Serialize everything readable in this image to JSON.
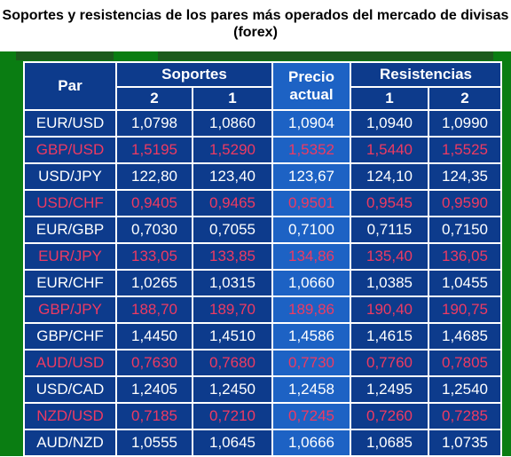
{
  "title": {
    "line1": "Soportes y resistencias de los pares más operados del mercado de divisas",
    "line2": "(forex)"
  },
  "header": {
    "pair_label": "Par",
    "supports_label": "Soportes",
    "current_line1": "Precio",
    "current_line2": "actual",
    "resistances_label": "Resistencias",
    "support_2": "2",
    "support_1": "1",
    "resistance_1": "1",
    "resistance_2": "2"
  },
  "colors": {
    "table_bg": "#0d3b8c",
    "current_col_bg": "#1d62c4",
    "text_white": "#ffffff",
    "text_pink": "#ee3a62",
    "frame_green": "#0a7d12"
  },
  "rows": [
    {
      "pair": "EUR/USD",
      "s2": "1,0798",
      "s1": "1,0860",
      "current": "1,0904",
      "r1": "1,0940",
      "r2": "1,0990"
    },
    {
      "pair": "GBP/USD",
      "s2": "1,5195",
      "s1": "1,5290",
      "current": "1,5352",
      "r1": "1,5440",
      "r2": "1,5525"
    },
    {
      "pair": "USD/JPY",
      "s2": "122,80",
      "s1": "123,40",
      "current": "123,67",
      "r1": "124,10",
      "r2": "124,35"
    },
    {
      "pair": "USD/CHF",
      "s2": "0,9405",
      "s1": "0,9465",
      "current": "0,9501",
      "r1": "0,9545",
      "r2": "0,9590"
    },
    {
      "pair": "EUR/GBP",
      "s2": "0,7030",
      "s1": "0,7055",
      "current": "0,7100",
      "r1": "0,7115",
      "r2": "0,7150"
    },
    {
      "pair": "EUR/JPY",
      "s2": "133,05",
      "s1": "133,85",
      "current": "134,86",
      "r1": "135,40",
      "r2": "136,05"
    },
    {
      "pair": "EUR/CHF",
      "s2": "1,0265",
      "s1": "1,0315",
      "current": "1,0660",
      "r1": "1,0385",
      "r2": "1,0455"
    },
    {
      "pair": "GBP/JPY",
      "s2": "188,70",
      "s1": "189,70",
      "current": "189,86",
      "r1": "190,40",
      "r2": "190,75"
    },
    {
      "pair": "GBP/CHF",
      "s2": "1,4450",
      "s1": "1,4510",
      "current": "1,4586",
      "r1": "1,4615",
      "r2": "1,4685"
    },
    {
      "pair": "AUD/USD",
      "s2": "0,7630",
      "s1": "0,7680",
      "current": "0,7730",
      "r1": "0,7760",
      "r2": "0,7805"
    },
    {
      "pair": "USD/CAD",
      "s2": "1,2405",
      "s1": "1,2450",
      "current": "1,2458",
      "r1": "1,2495",
      "r2": "1,2540"
    },
    {
      "pair": "NZD/USD",
      "s2": "0,7185",
      "s1": "0,7210",
      "current": "0,7245",
      "r1": "0,7260",
      "r2": "0,7285"
    },
    {
      "pair": "AUD/NZD",
      "s2": "1,0555",
      "s1": "1,0645",
      "current": "1,0666",
      "r1": "1,0685",
      "r2": "1,0735"
    }
  ]
}
